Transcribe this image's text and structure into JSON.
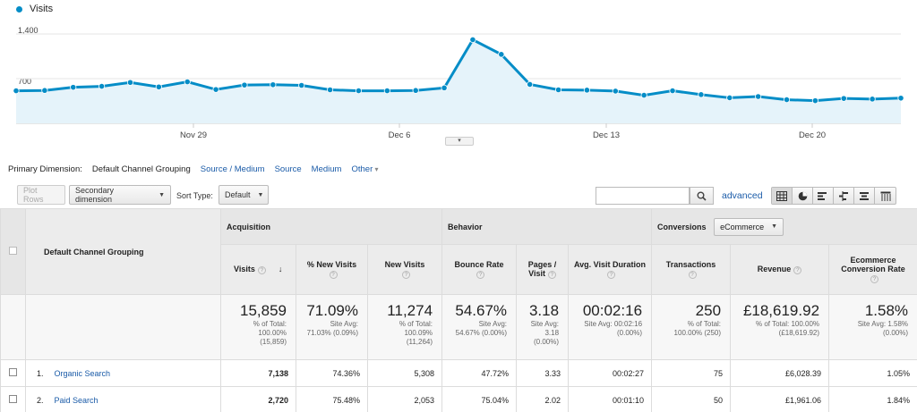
{
  "chart_data": {
    "type": "area",
    "series": [
      {
        "name": "Visits",
        "color": "#058dc7",
        "values": [
          510,
          515,
          565,
          580,
          640,
          570,
          650,
          530,
          600,
          605,
          595,
          525,
          510,
          510,
          515,
          555,
          1310,
          1080,
          610,
          525,
          520,
          505,
          440,
          510,
          450,
          400,
          420,
          370,
          355,
          390,
          380,
          395
        ]
      }
    ],
    "x_tick_labels": [
      "Nov 29",
      "Dec 6",
      "Dec 13",
      "Dec 20"
    ],
    "y_tick_labels": [
      "1,400",
      "700"
    ],
    "ylim": [
      0,
      1400
    ]
  },
  "legend": {
    "label": "Visits"
  },
  "dimensions": {
    "label": "Primary Dimension:",
    "current": "Default Channel Grouping",
    "links": [
      "Source / Medium",
      "Source",
      "Medium"
    ],
    "other": "Other"
  },
  "toolbar": {
    "plot_rows": "Plot Rows",
    "secondary": "Secondary dimension",
    "sort_label": "Sort Type:",
    "sort_value": "Default",
    "advanced": "advanced",
    "search_value": ""
  },
  "table": {
    "dim_header": "Default Channel Grouping",
    "groups": {
      "acquisition": "Acquisition",
      "behavior": "Behavior",
      "conversions": "Conversions",
      "conversions_select": "eCommerce"
    },
    "columns": [
      "Visits",
      "% New Visits",
      "New Visits",
      "Bounce Rate",
      "Pages / Visit",
      "Avg. Visit Duration",
      "Transactions",
      "Revenue",
      "Ecommerce Conversion Rate"
    ],
    "totals": [
      {
        "value": "15,859",
        "sub": [
          "% of Total:",
          "100.00%",
          "(15,859)"
        ]
      },
      {
        "value": "71.09%",
        "sub": [
          "Site Avg:",
          "71.03% (0.09%)"
        ]
      },
      {
        "value": "11,274",
        "sub": [
          "% of Total:",
          "100.09%",
          "(11,264)"
        ]
      },
      {
        "value": "54.67%",
        "sub": [
          "Site Avg:",
          "54.67% (0.00%)"
        ]
      },
      {
        "value": "3.18",
        "sub": [
          "Site Avg:",
          "3.18",
          "(0.00%)"
        ]
      },
      {
        "value": "00:02:16",
        "sub": [
          "Site Avg: 00:02:16",
          "(0.00%)"
        ]
      },
      {
        "value": "250",
        "sub": [
          "% of Total:",
          "100.00% (250)"
        ]
      },
      {
        "value": "£18,619.92",
        "sub": [
          "% of Total: 100.00%",
          "(£18,619.92)"
        ]
      },
      {
        "value": "1.58%",
        "sub": [
          "Site Avg: 1.58%",
          "(0.00%)"
        ]
      }
    ],
    "rows": [
      {
        "index": "1.",
        "name": "Organic Search",
        "cells": [
          "7,138",
          "74.36%",
          "5,308",
          "47.72%",
          "3.33",
          "00:02:27",
          "75",
          "£6,028.39",
          "1.05%"
        ]
      },
      {
        "index": "2.",
        "name": "Paid Search",
        "cells": [
          "2,720",
          "75.48%",
          "2,053",
          "75.04%",
          "2.02",
          "00:01:10",
          "50",
          "£1,961.06",
          "1.84%"
        ]
      }
    ]
  }
}
